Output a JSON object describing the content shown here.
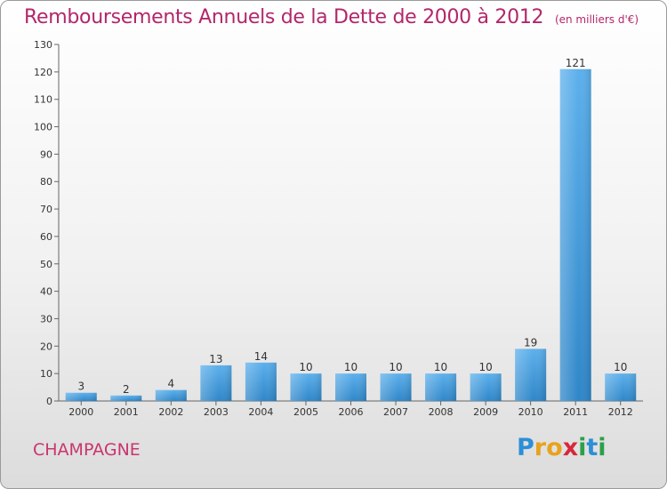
{
  "chart_data": {
    "type": "bar",
    "title": "Remboursements Annuels de la Dette de 2000 à 2012",
    "subtitle": "(en milliers d'€)",
    "categories": [
      "2000",
      "2001",
      "2002",
      "2003",
      "2004",
      "2005",
      "2006",
      "2007",
      "2008",
      "2009",
      "2010",
      "2011",
      "2012"
    ],
    "values": [
      3,
      2,
      4,
      13,
      14,
      10,
      10,
      10,
      10,
      10,
      19,
      121,
      10
    ],
    "ylim": [
      0,
      130
    ],
    "yticks": [
      0,
      10,
      20,
      30,
      40,
      50,
      60,
      70,
      80,
      90,
      100,
      110,
      120,
      130
    ],
    "grid": false,
    "xlabel": "",
    "ylabel": "",
    "colors": {
      "bar_top": "#5cb0ec",
      "bar_bottom": "#2f86c8",
      "title": "#b3266b",
      "commune": "#c9356f"
    }
  },
  "footer": {
    "commune": "CHAMPAGNE",
    "logo_letters": [
      {
        "ch": "P",
        "color": "#2d8fd6"
      },
      {
        "ch": "r",
        "color": "#e8a21c"
      },
      {
        "ch": "o",
        "color": "#e8a21c"
      },
      {
        "ch": "x",
        "color": "#d6283c"
      },
      {
        "ch": "i",
        "color": "#2aa04a"
      },
      {
        "ch": "t",
        "color": "#2d8fd6"
      },
      {
        "ch": "i",
        "color": "#2aa04a"
      }
    ]
  }
}
